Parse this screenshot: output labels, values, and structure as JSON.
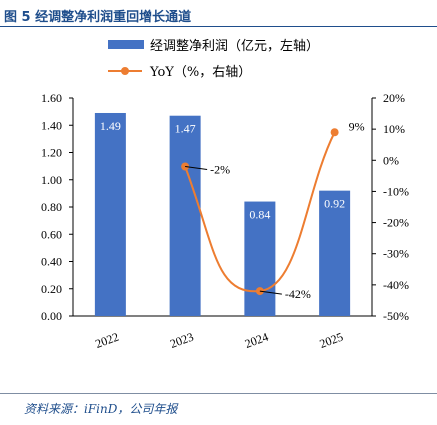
{
  "figure": {
    "title": "图 5 经调整净利润重回增长通道",
    "source": "资料来源：iFinD，公司年报"
  },
  "colors": {
    "bar": "#4472c4",
    "line": "#ed7d31",
    "title": "#1f4e8c"
  },
  "chart_data": {
    "type": "bar",
    "categories": [
      "2022",
      "2023",
      "2024",
      "2025"
    ],
    "series": [
      {
        "name": "经调整净利润（亿元，左轴）",
        "type": "bar",
        "axis": "left",
        "values": [
          1.49,
          1.47,
          0.84,
          0.92
        ],
        "labels": [
          "1.49",
          "1.47",
          "0.84",
          "0.92"
        ]
      },
      {
        "name": "YoY（%，右轴）",
        "type": "line",
        "axis": "right",
        "values": [
          -2,
          -42,
          9
        ],
        "x": [
          "2023",
          "2024",
          "2025"
        ],
        "labels": [
          "-2%",
          "-42%",
          "9%"
        ]
      }
    ],
    "y_left": {
      "ylim": [
        0,
        1.6
      ],
      "ticks": [
        "0.00",
        "0.20",
        "0.40",
        "0.60",
        "0.80",
        "1.00",
        "1.20",
        "1.40",
        "1.60"
      ]
    },
    "y_right": {
      "ylim": [
        -50,
        20
      ],
      "ticks": [
        "-50%",
        "-40%",
        "-30%",
        "-20%",
        "-10%",
        "0%",
        "10%",
        "20%"
      ]
    },
    "grid": false,
    "legend": "top-center"
  }
}
